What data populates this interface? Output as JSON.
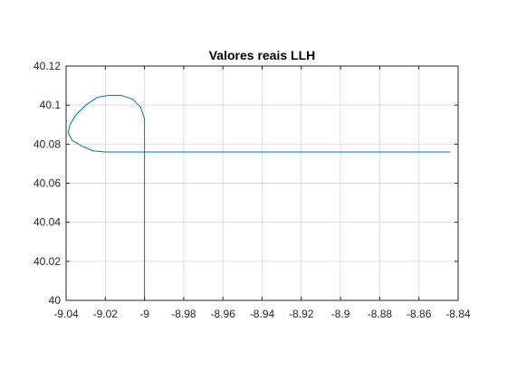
{
  "chart_data": {
    "type": "line",
    "title": "Valores reais LLH",
    "xlabel": "",
    "ylabel": "",
    "xlim": [
      -9.04,
      -8.84
    ],
    "ylim": [
      40,
      40.12
    ],
    "grid": true,
    "x_ticks": [
      -9.04,
      -9.02,
      -9,
      -8.98,
      -8.96,
      -8.94,
      -8.92,
      -8.9,
      -8.88,
      -8.86,
      -8.84
    ],
    "x_tick_labels": [
      "-9.04",
      "-9.02",
      "-9",
      "-8.98",
      "-8.96",
      "-8.94",
      "-8.92",
      "-8.9",
      "-8.88",
      "-8.86",
      "-8.84"
    ],
    "y_ticks": [
      40,
      40.02,
      40.04,
      40.06,
      40.08,
      40.1,
      40.12
    ],
    "y_tick_labels": [
      "40",
      "40.02",
      "40.04",
      "40.06",
      "40.08",
      "40.1",
      "40.12"
    ],
    "series": [
      {
        "color": "#0072bd",
        "x": [
          -9.0,
          -9.0,
          -9.0,
          -9.002,
          -9.006,
          -9.012,
          -9.018,
          -9.024,
          -9.03,
          -9.035,
          -9.038,
          -9.039,
          -9.037,
          -9.032,
          -9.026,
          -9.02,
          -9.018,
          -9.01,
          -9.0,
          -8.98,
          -8.95,
          -8.92,
          -8.89,
          -8.86,
          -8.844
        ],
        "y": [
          40.0,
          40.05,
          40.093,
          40.099,
          40.103,
          40.105,
          40.105,
          40.104,
          40.1,
          40.095,
          40.09,
          40.086,
          40.082,
          40.079,
          40.0765,
          40.076,
          40.076,
          40.076,
          40.076,
          40.076,
          40.076,
          40.076,
          40.076,
          40.076,
          40.076
        ]
      }
    ]
  }
}
